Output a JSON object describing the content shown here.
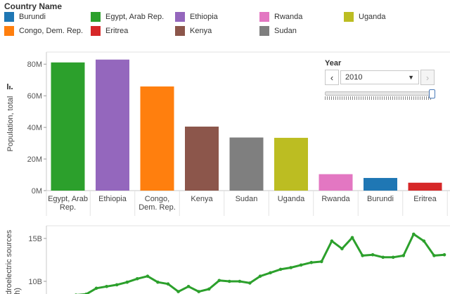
{
  "legend": {
    "title": "Country Name",
    "items": [
      {
        "label": "Burundi",
        "color": "#1f77b4"
      },
      {
        "label": "Egypt, Arab Rep.",
        "color": "#2ca02c"
      },
      {
        "label": "Ethiopia",
        "color": "#9467bd"
      },
      {
        "label": "Rwanda",
        "color": "#e377c2"
      },
      {
        "label": "Uganda",
        "color": "#bcbd22"
      },
      {
        "label": "Congo, Dem. Rep.",
        "color": "#ff7f0e"
      },
      {
        "label": "Eritrea",
        "color": "#d62728"
      },
      {
        "label": "Kenya",
        "color": "#8c564b"
      },
      {
        "label": "Sudan",
        "color": "#7f7f7f"
      }
    ]
  },
  "year_filter": {
    "title": "Year",
    "value": "2010",
    "prev": "‹",
    "next": "›",
    "slider_position": 1.0
  },
  "chart_data": [
    {
      "type": "bar",
      "ylabel": "Population, total",
      "ylim": [
        0,
        85000000
      ],
      "yticks": [
        0,
        20000000,
        40000000,
        60000000,
        80000000
      ],
      "ytick_labels": [
        "0M",
        "20M",
        "40M",
        "60M",
        "80M"
      ],
      "grid": false,
      "categories": [
        {
          "lines": [
            "Egypt, Arab",
            "Rep."
          ],
          "value": 81100000,
          "color": "#2ca02c"
        },
        {
          "lines": [
            "Ethiopia"
          ],
          "value": 82900000,
          "color": "#9467bd"
        },
        {
          "lines": [
            "Congo,",
            "Dem. Rep."
          ],
          "value": 65900000,
          "color": "#ff7f0e"
        },
        {
          "lines": [
            "Kenya"
          ],
          "value": 40500000,
          "color": "#8c564b"
        },
        {
          "lines": [
            "Sudan"
          ],
          "value": 33600000,
          "color": "#7f7f7f"
        },
        {
          "lines": [
            "Uganda"
          ],
          "value": 33400000,
          "color": "#bcbd22"
        },
        {
          "lines": [
            "Rwanda"
          ],
          "value": 10400000,
          "color": "#e377c2"
        },
        {
          "lines": [
            "Burundi"
          ],
          "value": 8000000,
          "color": "#1f77b4"
        },
        {
          "lines": [
            "Eritrea"
          ],
          "value": 5000000,
          "color": "#d62728"
        }
      ]
    },
    {
      "type": "line",
      "ylabel": "droelectric sources",
      "ylabel_line2": "h)",
      "ylim": [
        8500000000,
        16000000000
      ],
      "yticks": [
        10000000000,
        15000000000
      ],
      "ytick_labels": [
        "10B",
        "15B"
      ],
      "series": [
        {
          "color": "#2ca02c",
          "values": [
            8400000000.0,
            8500000000.0,
            9200000000.0,
            9400000000.0,
            9600000000.0,
            9900000000.0,
            10300000000.0,
            10600000000.0,
            9900000000.0,
            9700000000.0,
            8800000000.0,
            9400000000.0,
            8800000000.0,
            9100000000.0,
            10100000000.0,
            10000000000.0,
            10000000000.0,
            9800000000.0,
            10600000000.0,
            11000000000.0,
            11400000000.0,
            11600000000.0,
            11900000000.0,
            12200000000.0,
            12300000000.0,
            14700000000.0,
            13800000000.0,
            15100000000.0,
            13000000000.0,
            13100000000.0,
            12800000000.0,
            12800000000.0,
            13000000000.0,
            15500000000.0,
            14700000000.0,
            13000000000.0,
            13100000000.0
          ]
        }
      ]
    }
  ]
}
